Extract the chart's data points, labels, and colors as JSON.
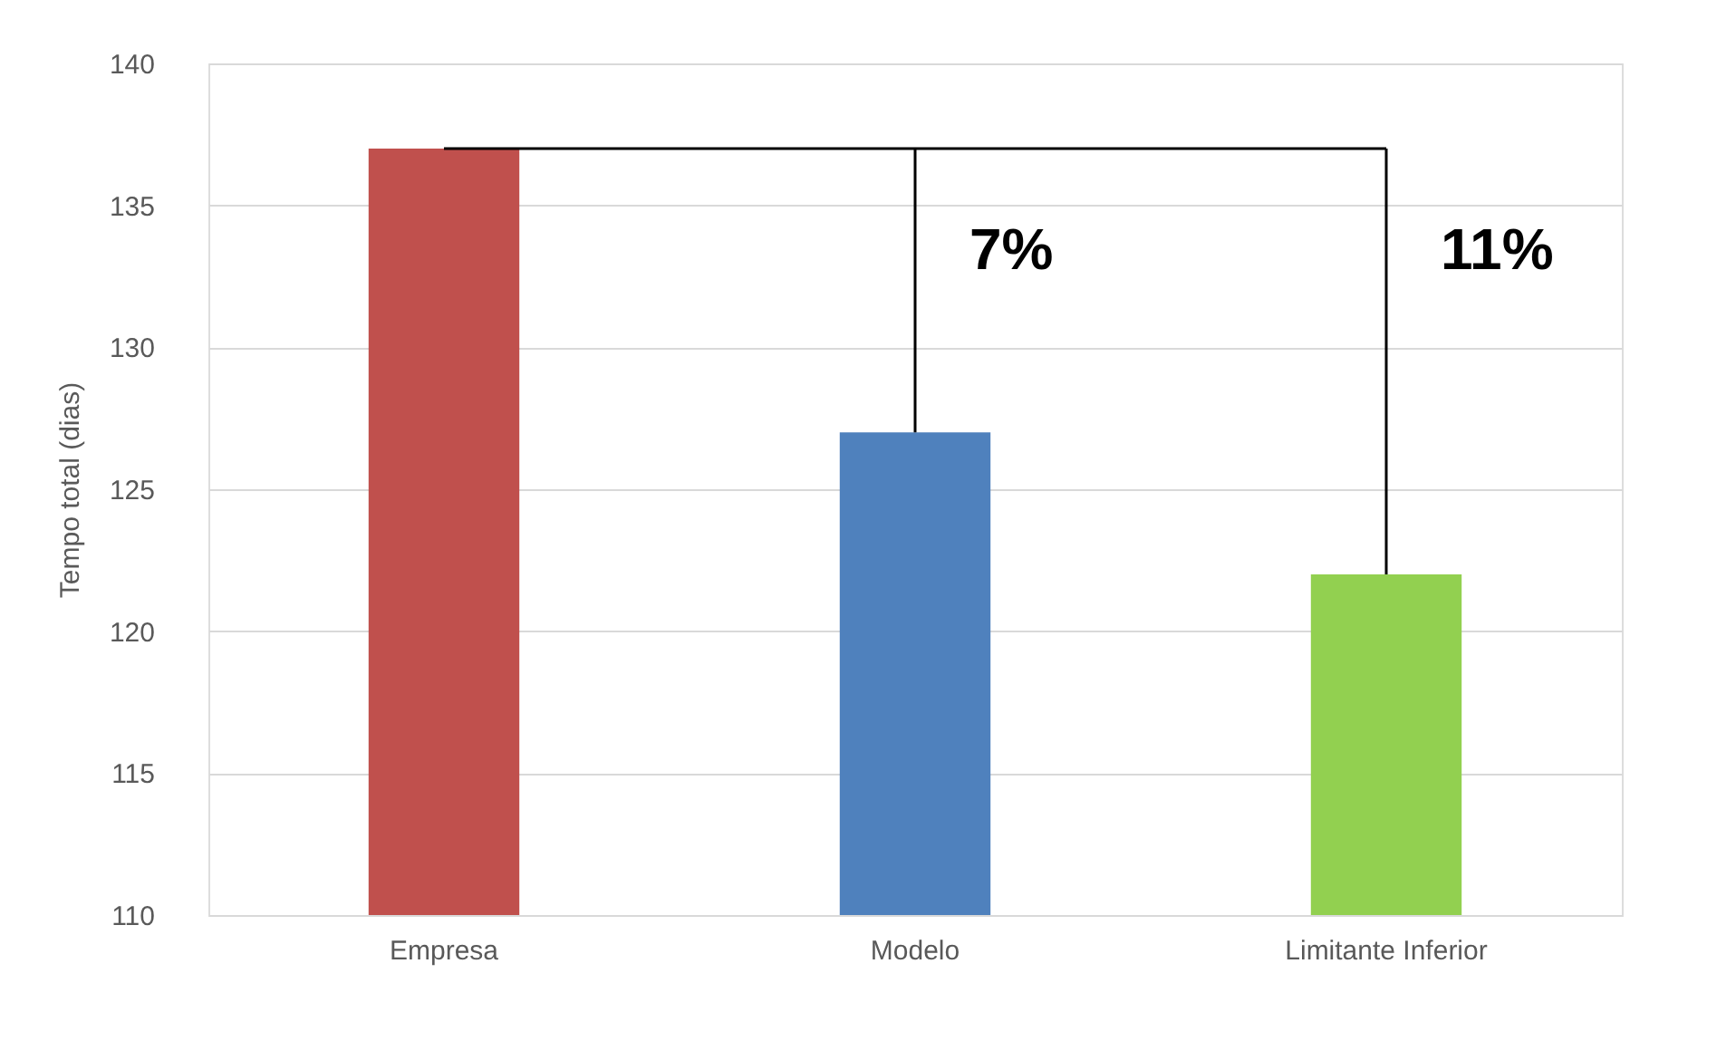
{
  "chart_data": {
    "type": "bar",
    "ylabel": "Tempo total (dias)",
    "categories": [
      "Empresa",
      "Modelo",
      "Limitante Inferior"
    ],
    "values": [
      137,
      127,
      122
    ],
    "colors": [
      "#c0504d",
      "#4f81bd",
      "#92d050"
    ],
    "ylim": [
      110,
      140
    ],
    "yticks": [
      110,
      115,
      120,
      125,
      130,
      135,
      140
    ],
    "grid": "y",
    "ref_lines": [
      {
        "axis": "y",
        "value": 137,
        "color": "#000000"
      }
    ],
    "annotations": [
      "7%",
      "11%"
    ]
  }
}
